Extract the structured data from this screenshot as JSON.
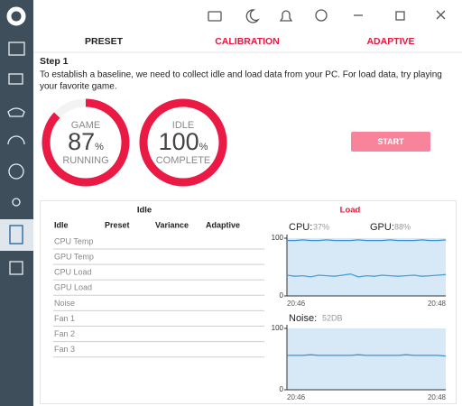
{
  "tabs": [
    "PRESET",
    "CALIBRATION",
    "ADAPTIVE"
  ],
  "step": {
    "title": "Step 1",
    "description_lines": [
      "To establish a baseline, we need to collect idle and load data from your PC. For load data, try playing",
      "your favorite game."
    ]
  },
  "gauges": [
    {
      "top": "GAME",
      "value": 87,
      "unit": "%",
      "bottom": "RUNNING"
    },
    {
      "top": "IDLE",
      "value": 100,
      "unit": "%",
      "bottom": "COMPLETE"
    }
  ],
  "button": "START",
  "panel": {
    "idle_title": "Idle",
    "load_title": "Load",
    "columns": [
      "Idle",
      "Preset",
      "Variance",
      "Adaptive"
    ],
    "rows": [
      "CPU Temp",
      "GPU Temp",
      "CPU Load",
      "GPU Load",
      "Noise",
      "Fan 1",
      "Fan 2",
      "Fan 3"
    ]
  },
  "load": {
    "cpu": {
      "label": "CPU:",
      "value": "37%"
    },
    "gpu": {
      "label": "GPU:",
      "value": "88%"
    },
    "noise": {
      "label": "Noise:",
      "value": "52DB"
    }
  },
  "charts": [
    {
      "type": "line",
      "ylim": [
        0,
        100
      ],
      "yticks": [
        0,
        100
      ],
      "xlabels": [
        "20:46",
        "20:48"
      ],
      "series": [
        {
          "color": "#3d93cf",
          "values": [
            96,
            96,
            97,
            96,
            96,
            97,
            96,
            96,
            96,
            97,
            96,
            96,
            96,
            97,
            96,
            96,
            96,
            97,
            96,
            96,
            97
          ]
        },
        {
          "color": "#4aa0d8",
          "values": [
            36,
            34,
            35,
            33,
            36,
            35,
            34,
            36,
            38,
            33,
            35,
            34,
            36,
            35,
            34,
            35,
            36,
            34,
            35,
            36,
            37
          ]
        }
      ]
    },
    {
      "type": "line",
      "ylim": [
        0,
        100
      ],
      "yticks": [
        0,
        100
      ],
      "xlabels": [
        "20:46",
        "20:48"
      ],
      "series": [
        {
          "color": "#3d93cf",
          "values": [
            56,
            56,
            56,
            57,
            56,
            56,
            56,
            56,
            56,
            57,
            56,
            56,
            56,
            56,
            56,
            57,
            56,
            56,
            56,
            56,
            55
          ]
        }
      ]
    }
  ]
}
